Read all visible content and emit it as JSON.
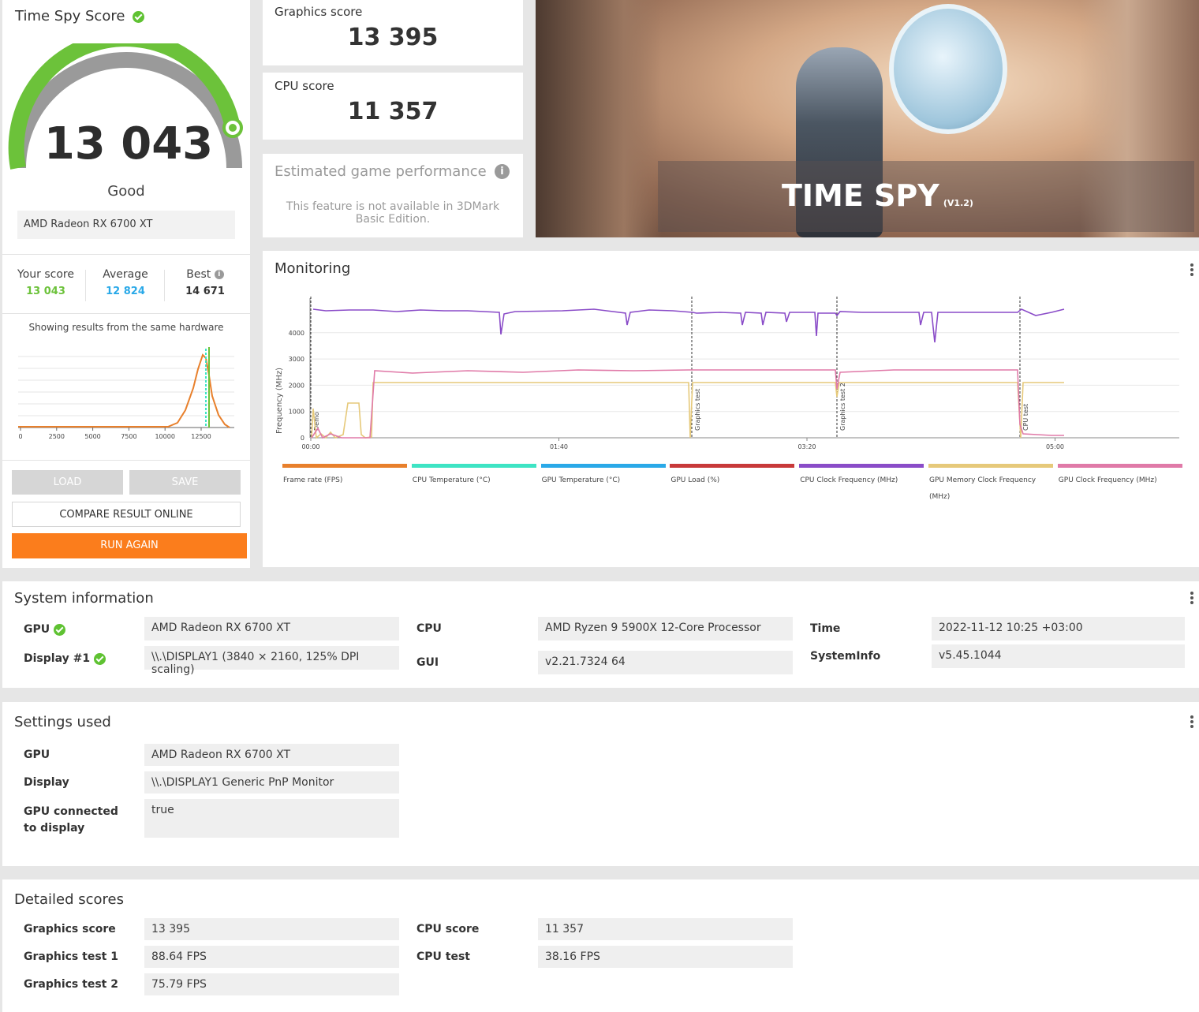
{
  "score_panel": {
    "title": "Time Spy Score",
    "score": "13 043",
    "rating": "Good",
    "gauge_fraction": 0.95,
    "hardware": "AMD Radeon RX 6700 XT",
    "your_score_label": "Your score",
    "your_score": "13 043",
    "average_label": "Average",
    "average": "12 824",
    "best_label": "Best",
    "best": "14 671",
    "showing_text": "Showing results from the same hardware",
    "dist_ticks": [
      "0",
      "2500",
      "5000",
      "7500",
      "10000",
      "12500"
    ],
    "buttons": {
      "load": "LOAD",
      "save": "SAVE",
      "compare": "COMPARE RESULT ONLINE",
      "run_again": "RUN AGAIN"
    }
  },
  "graphics_score": {
    "label": "Graphics score",
    "value": "13 395"
  },
  "cpu_score": {
    "label": "CPU score",
    "value": "11 357"
  },
  "estimated": {
    "title": "Estimated game performance",
    "text": "This feature is not available in 3DMark Basic Edition."
  },
  "hero": {
    "title": "TIME SPY",
    "version": "(V1.2)"
  },
  "monitoring": {
    "title": "Monitoring",
    "y_axis_label": "Frequency (MHz)",
    "y_ticks": [
      "0",
      "1000",
      "2000",
      "3000",
      "4000"
    ],
    "x_ticks": [
      "00:00",
      "01:40",
      "03:20",
      "05:00"
    ],
    "markers": [
      "Demo",
      "Graphics test",
      "Graphics test 2",
      "CPU test"
    ],
    "legend": [
      {
        "name": "Frame rate (FPS)",
        "color": "#e8802c"
      },
      {
        "name": "CPU Temperature (°C)",
        "color": "#3ee4c4"
      },
      {
        "name": "GPU Temperature (°C)",
        "color": "#2aa9e8"
      },
      {
        "name": "GPU Load (%)",
        "color": "#c8393a"
      },
      {
        "name": "CPU Clock Frequency (MHz)",
        "color": "#8a4cc8"
      },
      {
        "name": "GPU Memory Clock Frequency (MHz)",
        "color": "#e6c97a"
      },
      {
        "name": "GPU Clock Frequency (MHz)",
        "color": "#e07aa8"
      }
    ]
  },
  "system_info": {
    "title": "System information",
    "rows": [
      {
        "label": "GPU",
        "value": "AMD Radeon RX 6700 XT"
      },
      {
        "label": "Display #1",
        "value": "\\\\.\\DISPLAY1 (3840 × 2160, 125% DPI scaling)"
      },
      {
        "label": "CPU",
        "value": "AMD Ryzen 9 5900X 12-Core Processor"
      },
      {
        "label": "GUI",
        "value": "v2.21.7324 64"
      },
      {
        "label": "Time",
        "value": "2022-11-12 10:25 +03:00"
      },
      {
        "label": "SystemInfo",
        "value": "v5.45.1044"
      }
    ]
  },
  "settings": {
    "title": "Settings used",
    "rows": [
      {
        "label": "GPU",
        "value": "AMD Radeon RX 6700 XT"
      },
      {
        "label": "Display",
        "value": "\\\\.\\DISPLAY1 Generic PnP Monitor"
      },
      {
        "label": "GPU connected to display",
        "value": "true"
      }
    ]
  },
  "detailed": {
    "title": "Detailed scores",
    "rows": [
      {
        "label": "Graphics score",
        "value": "13 395"
      },
      {
        "label": "Graphics test 1",
        "value": "88.64 FPS"
      },
      {
        "label": "Graphics test 2",
        "value": "75.79 FPS"
      },
      {
        "label": "CPU score",
        "value": "11 357"
      },
      {
        "label": "CPU test",
        "value": "38.16 FPS"
      }
    ]
  }
}
